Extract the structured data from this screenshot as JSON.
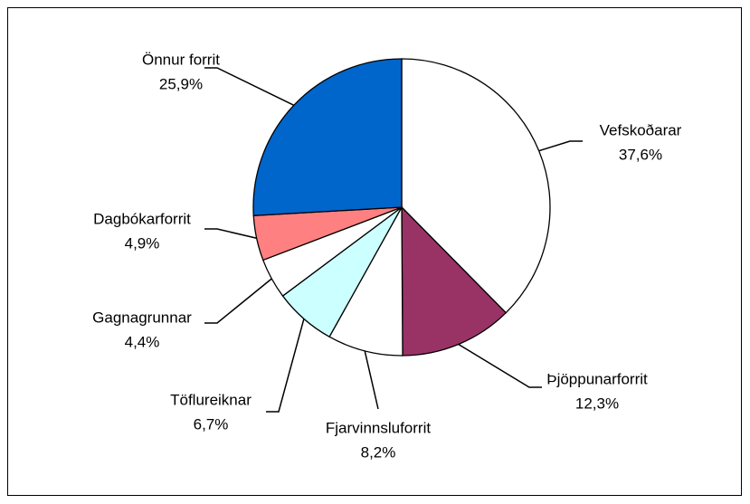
{
  "chart_data": {
    "type": "pie",
    "categories": [
      "Vefskoðarar",
      "Þjöppunarforrit",
      "Fjarvinnsluforrit",
      "Töflureiknar",
      "Gagnagrunnar",
      "Dagbókarforrit",
      "Önnur forrit"
    ],
    "values": [
      37.6,
      12.3,
      8.2,
      6.7,
      4.4,
      4.9,
      25.9
    ],
    "value_labels": [
      "37,6%",
      "12,3%",
      "8,2%",
      "6,7%",
      "4,4%",
      "4,9%",
      "25,9%"
    ],
    "colors": [
      "#ffffff",
      "#993366",
      "#ffffff",
      "#ccffff",
      "#ffffff",
      "#ff8080",
      "#0066cc"
    ]
  }
}
